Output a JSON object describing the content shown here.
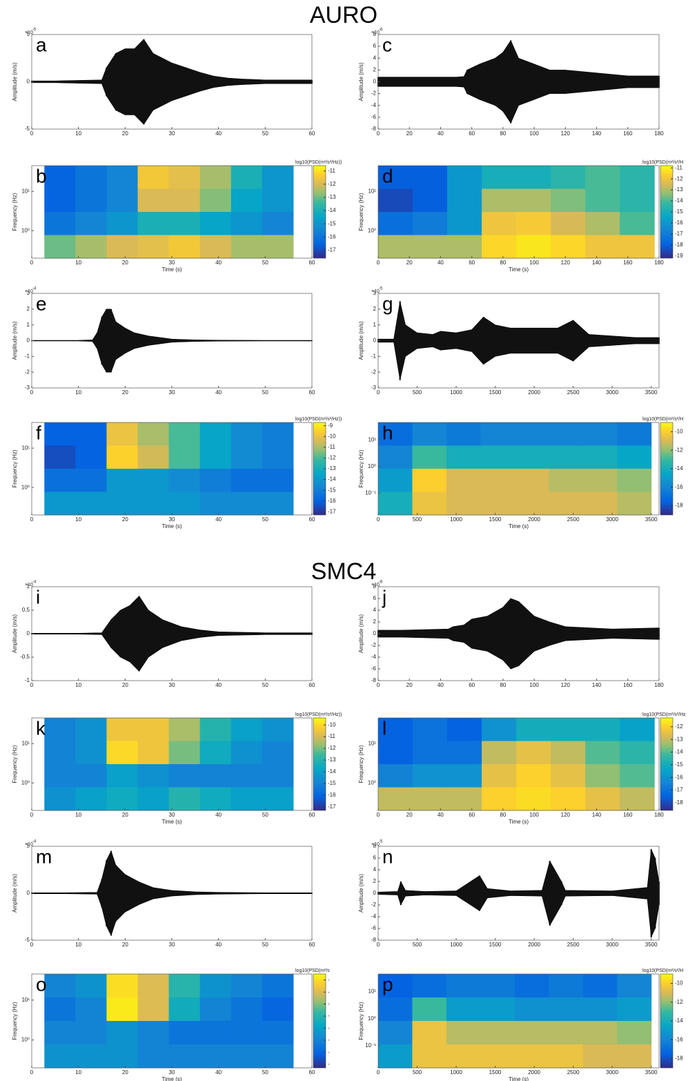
{
  "titles": [
    "AURO",
    "SMC4"
  ],
  "chart_data": [
    {
      "type": "waveform",
      "letter": "a",
      "ylabel": "Amplitude (m/s)",
      "scale_base": "×10",
      "scale_exp": "-5",
      "xlim": [
        0,
        60
      ],
      "xticks": [
        0,
        10,
        20,
        30,
        40,
        50,
        60
      ],
      "ylim": [
        -5,
        5
      ],
      "yticks": [
        -5,
        0,
        5
      ],
      "x": [
        0,
        5,
        10,
        15,
        16,
        18,
        20,
        22,
        24,
        26,
        28,
        30,
        33,
        36,
        39,
        42,
        45,
        50,
        55,
        60
      ],
      "values": [
        0.1,
        0.1,
        0.15,
        0.2,
        1.5,
        3,
        3.5,
        3.5,
        4.5,
        3,
        2.5,
        2,
        1.5,
        1,
        0.6,
        0.4,
        0.3,
        0.2,
        0.2,
        0.2
      ]
    },
    {
      "type": "heatmap",
      "letter": "b",
      "ylabel": "Frequency (Hz)",
      "xlabel": "Time (s)",
      "yscale": "log",
      "cbar_label": "log10(PSD(m²/s²/Hz))",
      "xlim": [
        0,
        60
      ],
      "xticks": [
        0,
        10,
        20,
        30,
        40,
        50,
        60
      ],
      "ylim": [
        0.2,
        45
      ],
      "yticks": [
        {
          "value": 1,
          "label": "10⁰"
        },
        {
          "value": 10,
          "label": "10¹"
        }
      ],
      "extent": [
        2.7,
        56,
        0.2,
        45
      ],
      "clim": [
        -17.6,
        -10.6
      ],
      "cticks": [
        -11,
        -12,
        -13,
        -14,
        -15,
        -16,
        -17
      ],
      "z": [
        [
          -16.5,
          -16,
          -15.5,
          -11.5,
          -11.8,
          -12.5,
          -14,
          -15
        ],
        [
          -16.5,
          -16,
          -15.5,
          -12,
          -12,
          -12.8,
          -14.5,
          -15
        ],
        [
          -16,
          -15.5,
          -15,
          -14,
          -14,
          -14.5,
          -15,
          -15.5
        ],
        [
          -13,
          -12.5,
          -12,
          -11.8,
          -11.5,
          -12,
          -12.5,
          -12.5
        ]
      ]
    },
    {
      "type": "waveform",
      "letter": "c",
      "ylabel": "Amplitude (m/s)",
      "scale_base": "×10",
      "scale_exp": "-6",
      "xlim": [
        0,
        180
      ],
      "xticks": [
        0,
        20,
        40,
        60,
        80,
        100,
        120,
        140,
        160,
        180
      ],
      "ylim": [
        -8,
        8
      ],
      "yticks": [
        -8,
        -6,
        -4,
        -2,
        0,
        2,
        4,
        6,
        8
      ],
      "x": [
        0,
        10,
        20,
        30,
        40,
        50,
        55,
        57,
        65,
        75,
        80,
        85,
        90,
        100,
        110,
        120,
        140,
        160,
        180
      ],
      "values": [
        0.8,
        0.8,
        0.8,
        0.8,
        0.8,
        0.8,
        0.9,
        2,
        3,
        4,
        5,
        7,
        4,
        3,
        2,
        2,
        1.5,
        1,
        1
      ]
    },
    {
      "type": "heatmap",
      "letter": "d",
      "ylabel": "Frequency (Hz)",
      "xlabel": "Time (s)",
      "yscale": "log",
      "cbar_label": "log10(PSD(m²/s²/H",
      "xlim": [
        0,
        180
      ],
      "xticks": [
        0,
        20,
        40,
        60,
        80,
        100,
        120,
        140,
        160,
        180
      ],
      "ylim": [
        0.2,
        45
      ],
      "yticks": [
        {
          "value": 1,
          "label": "10⁰"
        },
        {
          "value": 10,
          "label": "10¹"
        }
      ],
      "extent": [
        0,
        177,
        0.2,
        45
      ],
      "clim": [
        -19.2,
        -10.8
      ],
      "cticks": [
        -11,
        -12,
        -13,
        -14,
        -15,
        -16,
        -17,
        -18,
        -19
      ],
      "z": [
        [
          -18,
          -18,
          -16,
          -15,
          -15,
          -14.5,
          -14,
          -14.5
        ],
        [
          -18.5,
          -18,
          -16,
          -13,
          -13,
          -13.5,
          -14,
          -14.5
        ],
        [
          -17.5,
          -17,
          -16,
          -12,
          -11.8,
          -12.5,
          -13,
          -14
        ],
        [
          -13,
          -13,
          -13,
          -11.5,
          -11.2,
          -11.5,
          -12,
          -12
        ]
      ]
    },
    {
      "type": "waveform",
      "letter": "e",
      "ylabel": "Amplitude (m/s)",
      "scale_base": "×10",
      "scale_exp": "-4",
      "xlim": [
        0,
        60
      ],
      "xticks": [
        0,
        10,
        20,
        30,
        40,
        50,
        60
      ],
      "ylim": [
        -3,
        3
      ],
      "yticks": [
        -3,
        -2,
        -1,
        0,
        1,
        2,
        3
      ],
      "x": [
        0,
        5,
        10,
        13,
        14,
        15,
        16,
        17,
        18,
        20,
        22,
        25,
        30,
        35,
        40,
        50,
        60
      ],
      "values": [
        0.02,
        0.02,
        0.02,
        0.05,
        0.5,
        1.5,
        2,
        2,
        1.2,
        0.8,
        0.5,
        0.3,
        0.1,
        0.05,
        0.03,
        0.02,
        0.02
      ]
    },
    {
      "type": "heatmap",
      "letter": "f",
      "ylabel": "Frequency (Hz)",
      "xlabel": "Time (s)",
      "yscale": "log",
      "cbar_label": "log10(PSD(m²/s²/Hz))",
      "xlim": [
        0,
        60
      ],
      "xticks": [
        0,
        10,
        20,
        30,
        40,
        50,
        60
      ],
      "ylim": [
        0.2,
        45
      ],
      "yticks": [
        {
          "value": 1,
          "label": "10⁰"
        },
        {
          "value": 10,
          "label": "10¹"
        }
      ],
      "extent": [
        2.7,
        56,
        0.2,
        45
      ],
      "clim": [
        -17.3,
        -8.7
      ],
      "cticks": [
        -9,
        -10,
        -11,
        -12,
        -13,
        -14,
        -15,
        -16,
        -17
      ],
      "z": [
        [
          -16,
          -16,
          -10,
          -11,
          -12,
          -13.5,
          -14.5,
          -15
        ],
        [
          -16.5,
          -16,
          -9.5,
          -10.5,
          -12,
          -13.5,
          -14.5,
          -15
        ],
        [
          -15.5,
          -15.5,
          -14,
          -14,
          -14.5,
          -15,
          -15.5,
          -15.5
        ],
        [
          -14,
          -14,
          -14,
          -14,
          -14,
          -14.5,
          -14.5,
          -14.5
        ]
      ]
    },
    {
      "type": "waveform",
      "letter": "g",
      "ylabel": "Amplitude (m/s)",
      "scale_base": "×10",
      "scale_exp": "-5",
      "xlim": [
        0,
        3600
      ],
      "xticks": [
        0,
        500,
        1000,
        1500,
        2000,
        2500,
        3000,
        3500
      ],
      "ylim": [
        -3,
        3
      ],
      "yticks": [
        -3,
        -2,
        -1,
        0,
        1,
        2,
        3
      ],
      "x": [
        0,
        200,
        280,
        350,
        500,
        700,
        800,
        1000,
        1200,
        1350,
        1500,
        1700,
        2000,
        2300,
        2500,
        2700,
        3000,
        3300,
        3600
      ],
      "values": [
        0.1,
        0.1,
        2.5,
        1,
        0.5,
        0.4,
        0.6,
        0.5,
        0.7,
        1.5,
        1,
        0.8,
        0.8,
        0.8,
        1.3,
        0.4,
        0.3,
        0.2,
        0.2
      ]
    },
    {
      "type": "heatmap",
      "letter": "h",
      "ylabel": "Frequency (Hz)",
      "xlabel": "Time (s)",
      "yscale": "log",
      "cbar_label": "log10(PSD(m²/s²/H",
      "xlim": [
        0,
        3600
      ],
      "xticks": [
        0,
        500,
        1000,
        1500,
        2000,
        2500,
        3000,
        3500
      ],
      "ylim": [
        0.015,
        45
      ],
      "yticks": [
        {
          "value": 0.1,
          "label": "10⁻¹"
        },
        {
          "value": 1,
          "label": "10⁰"
        },
        {
          "value": 10,
          "label": "10¹"
        }
      ],
      "extent": [
        0,
        3500,
        0.015,
        45
      ],
      "clim": [
        -19,
        -9
      ],
      "cticks": [
        -10,
        -12,
        -14,
        -16,
        -18
      ],
      "z": [
        [
          -17,
          -16,
          -16.5,
          -16,
          -16,
          -16,
          -16,
          -16.5
        ],
        [
          -16,
          -13,
          -14,
          -14,
          -14,
          -14,
          -14,
          -14.5
        ],
        [
          -15,
          -10,
          -11,
          -11,
          -11,
          -11.5,
          -11.5,
          -12
        ],
        [
          -14,
          -10.5,
          -11,
          -11,
          -11,
          -11,
          -11,
          -11.5
        ]
      ]
    },
    {
      "type": "waveform",
      "letter": "i",
      "ylabel": "Amplitude (m/s)",
      "scale_base": "×10",
      "scale_exp": "-4",
      "xlim": [
        0,
        60
      ],
      "xticks": [
        0,
        10,
        20,
        30,
        40,
        50,
        60
      ],
      "ylim": [
        -1,
        1
      ],
      "yticks": [
        -1,
        -0.5,
        0,
        0.5,
        1
      ],
      "x": [
        0,
        5,
        10,
        15,
        17,
        19,
        21,
        23,
        25,
        28,
        32,
        36,
        40,
        50,
        60
      ],
      "values": [
        0.01,
        0.01,
        0.01,
        0.02,
        0.3,
        0.5,
        0.6,
        0.8,
        0.5,
        0.3,
        0.15,
        0.08,
        0.04,
        0.02,
        0.02
      ]
    },
    {
      "type": "waveform",
      "letter": "j",
      "ylabel": "Amplitude (m/s)",
      "scale_base": "×10",
      "scale_exp": "-6",
      "xlim": [
        0,
        180
      ],
      "xticks": [
        0,
        20,
        40,
        60,
        80,
        100,
        120,
        140,
        160,
        180
      ],
      "ylim": [
        -8,
        8
      ],
      "yticks": [
        -8,
        -6,
        -4,
        -2,
        0,
        2,
        4,
        6,
        8
      ],
      "x": [
        0,
        15,
        30,
        45,
        48,
        55,
        60,
        70,
        80,
        85,
        90,
        100,
        110,
        120,
        150,
        180
      ],
      "values": [
        0.6,
        0.6,
        0.7,
        0.8,
        1.2,
        1.5,
        2.5,
        3,
        4.5,
        6,
        5.5,
        3,
        2,
        1.2,
        0.8,
        1
      ]
    },
    {
      "type": "heatmap",
      "letter": "k",
      "ylabel": "Frequency (Hz)",
      "xlabel": "Time (s)",
      "yscale": "log",
      "cbar_label": "log10(PSD(m²/s²/Hz))",
      "xlim": [
        0,
        60
      ],
      "xticks": [
        0,
        10,
        20,
        30,
        40,
        50,
        60
      ],
      "ylim": [
        0.2,
        45
      ],
      "yticks": [
        {
          "value": 1,
          "label": "10⁰"
        },
        {
          "value": 10,
          "label": "10¹"
        }
      ],
      "extent": [
        2.7,
        56,
        0.2,
        45
      ],
      "clim": [
        -17.3,
        -9.4
      ],
      "cticks": [
        -10,
        -11,
        -12,
        -13,
        -14,
        -15,
        -16,
        -17
      ],
      "z": [
        [
          -15,
          -14.5,
          -10.5,
          -10.5,
          -11.5,
          -13,
          -14,
          -14.5
        ],
        [
          -15,
          -14.5,
          -10,
          -10.5,
          -12,
          -13.5,
          -14.5,
          -15
        ],
        [
          -15,
          -15,
          -14,
          -14.5,
          -15,
          -15,
          -15,
          -15
        ],
        [
          -14.5,
          -14,
          -13.5,
          -14,
          -13,
          -13.5,
          -14,
          -14
        ]
      ]
    },
    {
      "type": "heatmap",
      "letter": "l",
      "ylabel": "Frequency (Hz)",
      "xlabel": "Time (s)",
      "yscale": "log",
      "cbar_label": "log10(PSD(m²/s²/Hz",
      "xlim": [
        0,
        180
      ],
      "xticks": [
        0,
        20,
        40,
        60,
        80,
        100,
        120,
        140,
        160,
        180
      ],
      "ylim": [
        0.2,
        45
      ],
      "yticks": [
        {
          "value": 1,
          "label": "10⁰"
        },
        {
          "value": 10,
          "label": "10¹"
        }
      ],
      "extent": [
        0,
        177,
        0.2,
        45
      ],
      "clim": [
        -18.6,
        -11.3
      ],
      "cticks": [
        -12,
        -13,
        -14,
        -15,
        -16,
        -17,
        -18
      ],
      "z": [
        [
          -17.5,
          -17,
          -17.5,
          -16,
          -15,
          -15,
          -15,
          -15.5
        ],
        [
          -17.5,
          -17,
          -17,
          -13,
          -12.5,
          -13,
          -14,
          -14.5
        ],
        [
          -16.5,
          -16,
          -16,
          -12.5,
          -12,
          -12.5,
          -13.5,
          -14
        ],
        [
          -13,
          -13,
          -13,
          -12,
          -11.8,
          -12,
          -12.5,
          -13
        ]
      ]
    },
    {
      "type": "waveform",
      "letter": "m",
      "ylabel": "Amplitude (m/s)",
      "scale_base": "×10",
      "scale_exp": "-4",
      "xlim": [
        0,
        60
      ],
      "xticks": [
        0,
        10,
        20,
        30,
        40,
        50,
        60
      ],
      "ylim": [
        -5,
        5
      ],
      "yticks": [
        -5,
        0,
        5
      ],
      "x": [
        0,
        7,
        14,
        15,
        16,
        17,
        18,
        20,
        23,
        26,
        30,
        35,
        40,
        50,
        60
      ],
      "values": [
        0.05,
        0.05,
        0.1,
        1.5,
        3.5,
        4.5,
        3,
        2,
        1.2,
        0.6,
        0.3,
        0.15,
        0.1,
        0.05,
        0.05
      ]
    },
    {
      "type": "waveform",
      "letter": "n",
      "ylabel": "Amplitude (m/s)",
      "scale_base": "×10",
      "scale_exp": "-5",
      "xlim": [
        0,
        3600
      ],
      "xticks": [
        0,
        500,
        1000,
        1500,
        2000,
        2500,
        3000,
        3500
      ],
      "ylim": [
        -8,
        8
      ],
      "yticks": [
        -8,
        -6,
        -4,
        -2,
        0,
        2,
        4,
        6,
        8
      ],
      "x": [
        0,
        250,
        290,
        350,
        600,
        1000,
        1300,
        1400,
        1700,
        2100,
        2200,
        2350,
        2400,
        3000,
        3450,
        3500,
        3550,
        3600
      ],
      "values": [
        0.2,
        0.3,
        2,
        0.5,
        0.3,
        0.4,
        3,
        0.8,
        0.4,
        0.5,
        5.5,
        2,
        0.5,
        0.4,
        1,
        7.5,
        6,
        2
      ]
    },
    {
      "type": "heatmap",
      "letter": "o",
      "ylabel": "Frequency (Hz)",
      "xlabel": "Time (s)",
      "yscale": "log",
      "cbar_label": "log10(PSD(m²/s",
      "xlim": [
        0,
        60
      ],
      "xticks": [
        0,
        10,
        20,
        30,
        40,
        50,
        60
      ],
      "ylim": [
        0.2,
        45
      ],
      "yticks": [
        {
          "value": 1,
          "label": "10⁰"
        },
        {
          "value": 10,
          "label": "10¹"
        }
      ],
      "extent": [
        2.7,
        56,
        0.2,
        45
      ],
      "clim": [
        -17.3,
        -9.5
      ],
      "cticks": [
        {
          "value": -10,
          "label": "-"
        },
        {
          "value": -11,
          "label": "-"
        },
        {
          "value": -12,
          "label": "-"
        },
        {
          "value": -13,
          "label": "-"
        },
        {
          "value": -14,
          "label": "-"
        },
        {
          "value": -15,
          "label": "-"
        },
        {
          "value": -16,
          "label": "-"
        },
        {
          "value": -17,
          "label": "-"
        }
      ],
      "z": [
        [
          -15,
          -14.5,
          -10,
          -11,
          -13,
          -14.5,
          -15,
          -15.5
        ],
        [
          -15.5,
          -15,
          -9.8,
          -11,
          -13.5,
          -15,
          -15.5,
          -16
        ],
        [
          -15,
          -15,
          -14.5,
          -15,
          -15.5,
          -15.5,
          -15.5,
          -15.5
        ],
        [
          -14.5,
          -14.5,
          -14.5,
          -15,
          -15,
          -15,
          -15,
          -15
        ]
      ]
    },
    {
      "type": "heatmap",
      "letter": "p",
      "ylabel": "Frequency (Hz)",
      "xlabel": "Time (s)",
      "yscale": "log",
      "cbar_label": "log10(PSD(m²/s²/H",
      "xlim": [
        0,
        3600
      ],
      "xticks": [
        0,
        500,
        1000,
        1500,
        2000,
        2500,
        3000,
        3500
      ],
      "ylim": [
        0.015,
        45
      ],
      "yticks": [
        {
          "value": 0.1,
          "label": "10⁻¹"
        },
        {
          "value": 1,
          "label": "10⁰"
        },
        {
          "value": 10,
          "label": "10¹"
        }
      ],
      "extent": [
        0,
        3500,
        0.015,
        45
      ],
      "clim": [
        -19,
        -9
      ],
      "cticks": [
        -10,
        -12,
        -14,
        -16,
        -18
      ],
      "z": [
        [
          -17.5,
          -17,
          -16.5,
          -16.5,
          -17,
          -16.5,
          -17,
          -16
        ],
        [
          -17,
          -13,
          -15,
          -15,
          -15.5,
          -15.5,
          -15.5,
          -15
        ],
        [
          -16,
          -10.5,
          -11.5,
          -11.5,
          -11.5,
          -11.5,
          -11.5,
          -12
        ],
        [
          -15,
          -10.5,
          -10.5,
          -10.5,
          -10.5,
          -10.5,
          -11,
          -11
        ]
      ]
    }
  ]
}
